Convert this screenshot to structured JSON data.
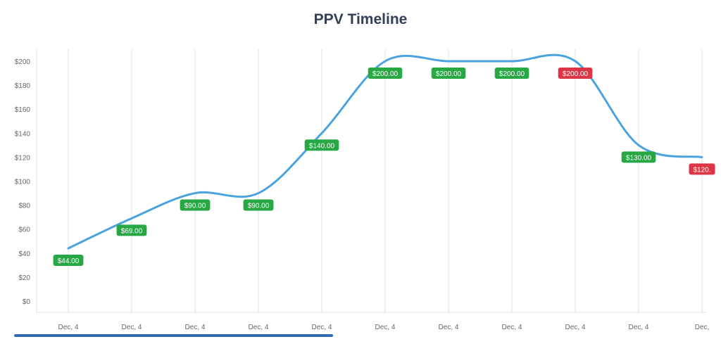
{
  "chart_data": {
    "type": "line",
    "title": "PPV Timeline",
    "x": [
      "Dec, 4",
      "Dec, 4",
      "Dec, 4",
      "Dec, 4",
      "Dec, 4",
      "Dec, 4",
      "Dec, 4",
      "Dec, 4",
      "Dec, 4",
      "Dec, 4",
      "Dec,"
    ],
    "values": [
      44,
      69,
      90,
      90,
      140,
      200,
      200,
      200,
      200,
      130,
      120
    ],
    "data_labels": [
      "$44.00",
      "$69.00",
      "$90.00",
      "$90.00",
      "$140.00",
      "$200.00",
      "$200.00",
      "$200.00",
      "$200.00",
      "$130.00",
      "$120."
    ],
    "label_status": [
      "green",
      "green",
      "green",
      "green",
      "green",
      "green",
      "green",
      "green",
      "red",
      "green",
      "red"
    ],
    "y_ticks": [
      "$0",
      "$20",
      "$40",
      "$60",
      "$80",
      "$100",
      "$120",
      "$140",
      "$160",
      "$180",
      "$200"
    ],
    "ylim": [
      0,
      200
    ],
    "grid": "vertical",
    "colors": {
      "line": "#4aa3df",
      "green": "#28a745",
      "red": "#dc3545",
      "grid": "#e3e3e3"
    }
  },
  "scrollbar": {
    "position": 0.46
  }
}
